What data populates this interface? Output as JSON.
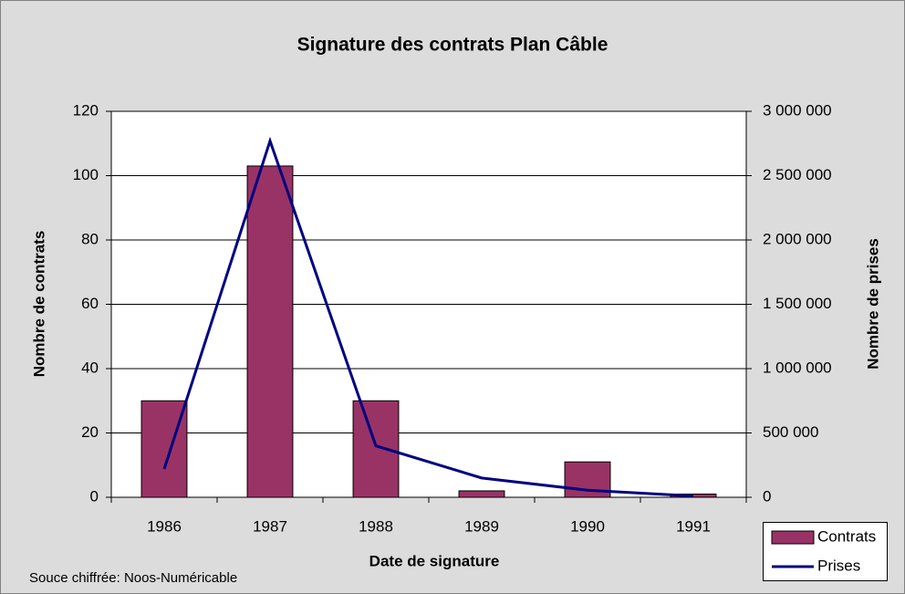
{
  "chart_data": {
    "type": "bar",
    "title": "Signature des contrats Plan Câble",
    "x_label": "Date de signature",
    "y_label": "Nombre de contrats",
    "y2_label": "Nombre de prises",
    "source": "Souce chiffrée: Noos-Numéricable",
    "categories": [
      "1986",
      "1987",
      "1988",
      "1989",
      "1990",
      "1991"
    ],
    "series": [
      {
        "name": "Contrats",
        "type": "bar",
        "color": "#993366",
        "values": [
          30,
          103,
          30,
          2,
          11,
          1
        ]
      },
      {
        "name": "Prises",
        "type": "line",
        "axis": "y2",
        "color": "#000080",
        "values": [
          220000,
          2770000,
          400000,
          150000,
          55000,
          10000
        ]
      }
    ],
    "ylim": [
      0,
      120
    ],
    "yticks": [
      0,
      20,
      40,
      60,
      80,
      100,
      120
    ],
    "y2lim": [
      0,
      3000000
    ],
    "y2ticks": [
      0,
      {
        "value": 500000,
        "label": "500 000"
      },
      {
        "value": 1000000,
        "label": "1 000 000"
      },
      {
        "value": 1500000,
        "label": "1 500 000"
      },
      {
        "value": 2000000,
        "label": "2 000 000"
      },
      {
        "value": 2500000,
        "label": "2 500 000"
      },
      {
        "value": 3000000,
        "label": "3 000 000"
      }
    ],
    "grid": true,
    "legend": "bottom-right"
  }
}
